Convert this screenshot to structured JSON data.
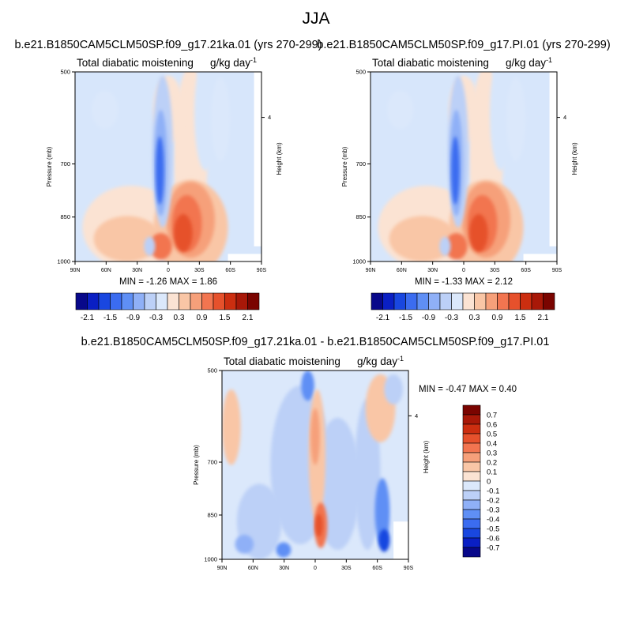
{
  "page_title": "JJA",
  "chart_data": [
    {
      "type": "heatmap",
      "title": "b.e21.B1850CAM5CLM50SP.f09_g17.21ka.01 (yrs 270-299)",
      "subtitle_left": "Total diabatic moistening",
      "subtitle_right": "g/kg day",
      "subtitle_right_sup": "-1",
      "ylabel": "Pressure (mb)",
      "y2label": "Height (km)",
      "x_ticks": [
        "90N",
        "60N",
        "30N",
        "0",
        "30S",
        "60S",
        "90S"
      ],
      "y_ticks": [
        "500",
        "700",
        "850",
        "1000"
      ],
      "y_values": [
        500,
        700,
        850,
        1000
      ],
      "height_ticks": [
        "4"
      ],
      "ylim": [
        1000,
        500
      ],
      "stats_text": "MIN =  -1.26   MAX =   1.86",
      "min": -1.26,
      "max": 1.86,
      "colorbar": {
        "orientation": "horizontal",
        "levels": [
          -2.1,
          -1.8,
          -1.5,
          -1.2,
          -0.9,
          -0.6,
          -0.3,
          0,
          0.3,
          0.6,
          0.9,
          1.2,
          1.5,
          1.8,
          2.1
        ],
        "labels": [
          "-2.1",
          "-1.5",
          "-0.9",
          "-0.3",
          "0.3",
          "0.9",
          "1.5",
          "2.1"
        ],
        "colors": [
          "#08088a",
          "#0a1fc4",
          "#1947e0",
          "#3b6cf0",
          "#5f8ff5",
          "#8fb0f7",
          "#bcd0f7",
          "#dbe8fb",
          "#fbe3d3",
          "#f9c6a6",
          "#f6a07a",
          "#f27550",
          "#e6512c",
          "#cc2e10",
          "#a81808",
          "#7a0400"
        ]
      }
    },
    {
      "type": "heatmap",
      "title": "b.e21.B1850CAM5CLM50SP.f09_g17.PI.01 (yrs 270-299)",
      "subtitle_left": "Total diabatic moistening",
      "subtitle_right": "g/kg day",
      "subtitle_right_sup": "-1",
      "ylabel": "Pressure (mb)",
      "y2label": "Height (km)",
      "x_ticks": [
        "90N",
        "60N",
        "30N",
        "0",
        "30S",
        "60S",
        "90S"
      ],
      "y_ticks": [
        "500",
        "700",
        "850",
        "1000"
      ],
      "y_values": [
        500,
        700,
        850,
        1000
      ],
      "height_ticks": [
        "4"
      ],
      "ylim": [
        1000,
        500
      ],
      "stats_text": "MIN =  -1.33   MAX =   2.12",
      "min": -1.33,
      "max": 2.12,
      "colorbar": {
        "orientation": "horizontal",
        "levels": [
          -2.1,
          -1.8,
          -1.5,
          -1.2,
          -0.9,
          -0.6,
          -0.3,
          0,
          0.3,
          0.6,
          0.9,
          1.2,
          1.5,
          1.8,
          2.1
        ],
        "labels": [
          "-2.1",
          "-1.5",
          "-0.9",
          "-0.3",
          "0.3",
          "0.9",
          "1.5",
          "2.1"
        ],
        "colors": [
          "#08088a",
          "#0a1fc4",
          "#1947e0",
          "#3b6cf0",
          "#5f8ff5",
          "#8fb0f7",
          "#bcd0f7",
          "#dbe8fb",
          "#fbe3d3",
          "#f9c6a6",
          "#f6a07a",
          "#f27550",
          "#e6512c",
          "#cc2e10",
          "#a81808",
          "#7a0400"
        ]
      }
    },
    {
      "type": "heatmap",
      "title": "b.e21.B1850CAM5CLM50SP.f09_g17.21ka.01 - b.e21.B1850CAM5CLM50SP.f09_g17.PI.01",
      "subtitle_left": "Total diabatic moistening",
      "subtitle_right": "g/kg day",
      "subtitle_right_sup": "-1",
      "ylabel": "Pressure (mb)",
      "y2label": "Height (km)",
      "x_ticks": [
        "90N",
        "60N",
        "30N",
        "0",
        "30S",
        "60S",
        "90S"
      ],
      "y_ticks": [
        "500",
        "700",
        "850",
        "1000"
      ],
      "y_values": [
        500,
        700,
        850,
        1000
      ],
      "height_ticks": [
        "4"
      ],
      "ylim": [
        1000,
        500
      ],
      "stats_text": "MIN =  -0.47   MAX =   0.40",
      "min": -0.47,
      "max": 0.4,
      "colorbar": {
        "orientation": "vertical",
        "levels": [
          -0.7,
          -0.6,
          -0.5,
          -0.4,
          -0.3,
          -0.2,
          -0.1,
          0,
          0.1,
          0.2,
          0.3,
          0.4,
          0.5,
          0.6,
          0.7
        ],
        "labels": [
          "0.7",
          "0.6",
          "0.5",
          "0.4",
          "0.3",
          "0.2",
          "0.1",
          "0",
          "-0.1",
          "-0.2",
          "-0.3",
          "-0.4",
          "-0.5",
          "-0.6",
          "-0.7"
        ],
        "colors": [
          "#7a0400",
          "#a81808",
          "#cc2e10",
          "#e6512c",
          "#f27550",
          "#f6a07a",
          "#f9c6a6",
          "#fbe3d3",
          "#dbe8fb",
          "#bcd0f7",
          "#8fb0f7",
          "#5f8ff5",
          "#3b6cf0",
          "#1947e0",
          "#0a1fc4",
          "#08088a"
        ]
      }
    }
  ]
}
